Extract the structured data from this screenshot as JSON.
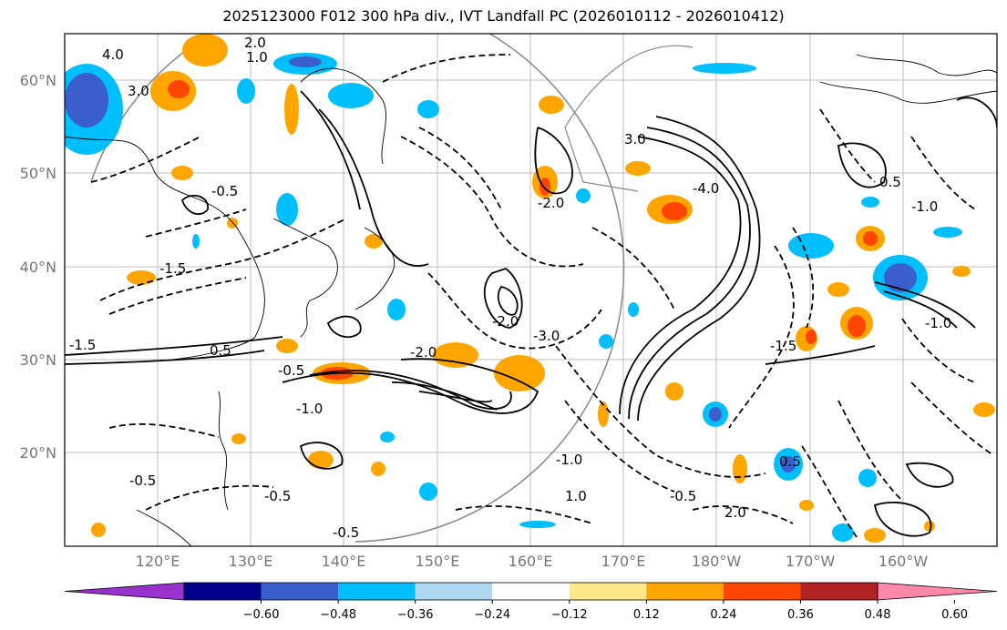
{
  "title": "2025123000 F012 300 hPa div., IVT Landfall PC (2026010112 - 2026010412)",
  "lat_ticks": [
    "60°N",
    "50°N",
    "40°N",
    "30°N",
    "20°N"
  ],
  "lon_ticks": [
    "120°E",
    "130°E",
    "140°E",
    "150°E",
    "160°E",
    "170°E",
    "180°W",
    "170°W",
    "160°W"
  ],
  "contour_labels": [
    "4.0",
    "3.0",
    "2.0",
    "1.0",
    "0.5",
    "-0.5",
    "-1.0",
    "-1.5",
    "-2.0",
    "-3.0",
    "-4.0"
  ],
  "colorbar": {
    "ticks": [
      "−0.60",
      "−0.48",
      "−0.36",
      "−0.24",
      "−0.12",
      "0.12",
      "0.24",
      "0.36",
      "0.48",
      "0.60"
    ],
    "colors": [
      "#9932cc",
      "#00008b",
      "#3a5fcd",
      "#00bfff",
      "#add8f0",
      "#ffffff",
      "#ffe88a",
      "#ffa500",
      "#ff4500",
      "#b22222",
      "#ff88a8"
    ]
  },
  "shading_colors": {
    "negative": "#00bfff",
    "negative_strong": "#3a5fcd",
    "positive": "#ffa500",
    "positive_strong": "#ff4500",
    "weak_positive": "#ffe88a",
    "weak_negative": "#add8f0"
  }
}
